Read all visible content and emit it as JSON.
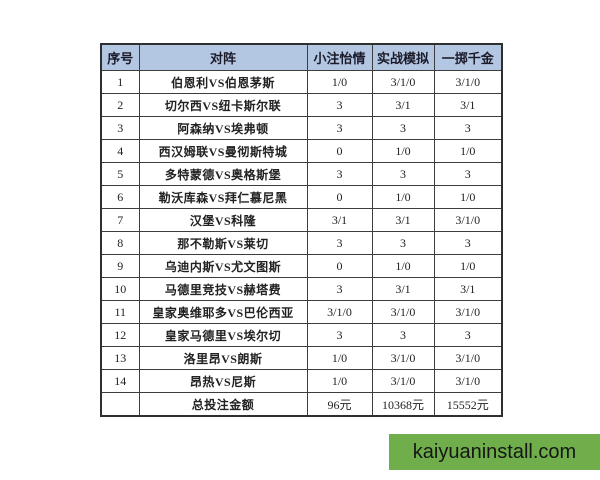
{
  "page": {
    "background": "#ffffff"
  },
  "table": {
    "headers": [
      "序号",
      "对阵",
      "小注怡情",
      "实战模拟",
      "一掷千金"
    ],
    "rows": [
      {
        "no": "1",
        "match": "伯恩利VS伯恩茅斯",
        "small": "1/0",
        "sim": "3/1/0",
        "big": "3/1/0"
      },
      {
        "no": "2",
        "match": "切尔西VS纽卡斯尔联",
        "small": "3",
        "sim": "3/1",
        "big": "3/1"
      },
      {
        "no": "3",
        "match": "阿森纳VS埃弗顿",
        "small": "3",
        "sim": "3",
        "big": "3"
      },
      {
        "no": "4",
        "match": "西汉姆联VS曼彻斯特城",
        "small": "0",
        "sim": "1/0",
        "big": "1/0"
      },
      {
        "no": "5",
        "match": "多特蒙德VS奥格斯堡",
        "small": "3",
        "sim": "3",
        "big": "3"
      },
      {
        "no": "6",
        "match": "勒沃库森VS拜仁慕尼黑",
        "small": "0",
        "sim": "1/0",
        "big": "1/0"
      },
      {
        "no": "7",
        "match": "汉堡VS科隆",
        "small": "3/1",
        "sim": "3/1",
        "big": "3/1/0"
      },
      {
        "no": "8",
        "match": "那不勒斯VS莱切",
        "small": "3",
        "sim": "3",
        "big": "3"
      },
      {
        "no": "9",
        "match": "乌迪内斯VS尤文图斯",
        "small": "0",
        "sim": "1/0",
        "big": "1/0"
      },
      {
        "no": "10",
        "match": "马德里竞技VS赫塔费",
        "small": "3",
        "sim": "3/1",
        "big": "3/1"
      },
      {
        "no": "11",
        "match": "皇家奥维耶多VS巴伦西亚",
        "small": "3/1/0",
        "sim": "3/1/0",
        "big": "3/1/0"
      },
      {
        "no": "12",
        "match": "皇家马德里VS埃尔切",
        "small": "3",
        "sim": "3",
        "big": "3"
      },
      {
        "no": "13",
        "match": "洛里昂VS朗斯",
        "small": "1/0",
        "sim": "3/1/0",
        "big": "3/1/0"
      },
      {
        "no": "14",
        "match": "昂热VS尼斯",
        "small": "1/0",
        "sim": "3/1/0",
        "big": "3/1/0"
      }
    ],
    "total": {
      "no": "",
      "label": "总投注金额",
      "small": "96元",
      "sim": "10368元",
      "big": "15552元"
    }
  },
  "watermark": {
    "text": "kaiyuaninstall.com",
    "background": "#6fae4b"
  },
  "colors": {
    "header_bg": "#b3c7e3",
    "border": "#3d3d3d",
    "text": "#222222",
    "watermark_green": "#6fae4b"
  }
}
